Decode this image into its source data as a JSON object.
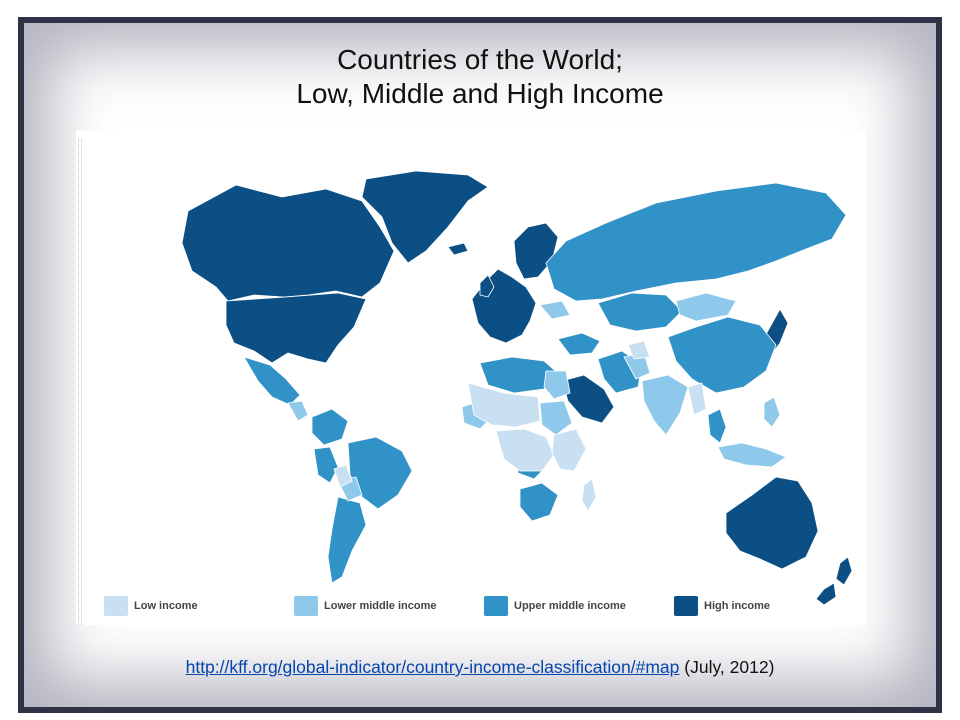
{
  "title": {
    "line1": "Countries of the World;",
    "line2": "Low, Middle and High Income"
  },
  "legend": [
    {
      "label": "Low income",
      "color": "#c9e0f2"
    },
    {
      "label": "Lower middle income",
      "color": "#8ec9ec"
    },
    {
      "label": "Upper middle income",
      "color": "#3192c7"
    },
    {
      "label": "High income",
      "color": "#0b4f84"
    }
  ],
  "colors": {
    "low": "#c9e0f2",
    "lower_middle": "#8ec9ec",
    "upper_middle": "#3192c7",
    "high": "#0b4f84",
    "frame": "#2f3347",
    "link": "#0645ad"
  },
  "source": {
    "url": "http://kff.org/global-indicator/country-income-classification/#map",
    "note": "(July, 2012)"
  }
}
